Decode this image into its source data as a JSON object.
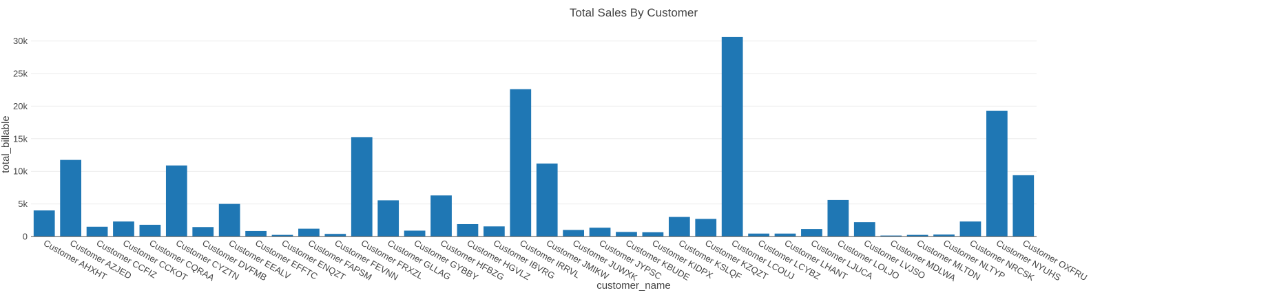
{
  "chart_data": {
    "type": "bar",
    "title": "Total Sales By Customer",
    "xlabel": "customer_name",
    "ylabel": "total_billable",
    "ylim": [
      0,
      30800
    ],
    "yticks": [
      0,
      5000,
      10000,
      15000,
      20000,
      25000,
      30000
    ],
    "ytick_labels": [
      "0",
      "5k",
      "10k",
      "15k",
      "20k",
      "25k",
      "30k"
    ],
    "grid": true,
    "bar_color": "#1f77b4",
    "categories": [
      "Customer AHXHT",
      "Customer AZJED",
      "Customer CCFIZ",
      "Customer CCKOT",
      "Customer CQRAA",
      "Customer CYZTN",
      "Customer DVFMB",
      "Customer EEALV",
      "Customer EFFTC",
      "Customer ENQZT",
      "Customer FAPSM",
      "Customer FEVNN",
      "Customer FRXZL",
      "Customer GLLAG",
      "Customer GYBBY",
      "Customer HFBZG",
      "Customer HGVLZ",
      "Customer IBVRG",
      "Customer IRRVL",
      "Customer JMIKW",
      "Customer JUWXK",
      "Customer JYPSC",
      "Customer KBUDE",
      "Customer KIDPX",
      "Customer KSLQF",
      "Customer KZQZT",
      "Customer LCOUJ",
      "Customer LCYBZ",
      "Customer LHANT",
      "Customer LJUCA",
      "Customer LOLJO",
      "Customer LVJSO",
      "Customer MDLWA",
      "Customer MLTDN",
      "Customer NLTYP",
      "Customer NRCSK",
      "Customer NYUHS",
      "Customer OXFRU"
    ],
    "values": [
      4000,
      11750,
      1500,
      2300,
      1800,
      10900,
      1450,
      5000,
      850,
      250,
      1200,
      400,
      15250,
      5550,
      900,
      6300,
      1900,
      1550,
      22600,
      11200,
      1000,
      1350,
      700,
      650,
      3000,
      2700,
      30600,
      450,
      450,
      1150,
      5600,
      2200,
      150,
      250,
      300,
      2300,
      19300,
      9400
    ]
  }
}
